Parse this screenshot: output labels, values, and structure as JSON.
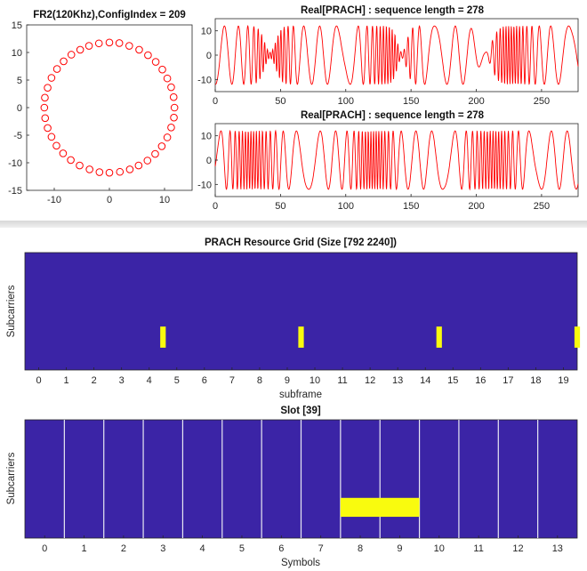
{
  "chart_data": [
    {
      "type": "scatter",
      "title": "FR2(120Khz),ConfigIndex = 209",
      "xlim": [
        -15,
        15
      ],
      "ylim": [
        -15,
        15
      ],
      "xticks": [
        "-10",
        "0",
        "10"
      ],
      "yticks": [
        "15",
        "10",
        "5",
        "0",
        "-5",
        "-10",
        "-15"
      ],
      "marker": "open circle",
      "color": "#ff0000",
      "shape": "ring of points, radius about 11.8 centred at origin",
      "points": [
        [
          11.8,
          0
        ],
        [
          11.65,
          1.9
        ],
        [
          11.2,
          3.7
        ],
        [
          10.5,
          5.3
        ],
        [
          9.6,
          6.9
        ],
        [
          8.4,
          8.3
        ],
        [
          7.0,
          9.5
        ],
        [
          5.4,
          10.5
        ],
        [
          3.6,
          11.2
        ],
        [
          1.8,
          11.7
        ],
        [
          0,
          11.8
        ],
        [
          -1.9,
          11.65
        ],
        [
          -3.7,
          11.2
        ],
        [
          -5.3,
          10.5
        ],
        [
          -6.9,
          9.6
        ],
        [
          -8.3,
          8.4
        ],
        [
          -9.5,
          7.0
        ],
        [
          -10.5,
          5.4
        ],
        [
          -11.2,
          3.6
        ],
        [
          -11.7,
          1.8
        ],
        [
          -11.8,
          0
        ],
        [
          -11.65,
          -1.9
        ],
        [
          -11.2,
          -3.7
        ],
        [
          -10.5,
          -5.3
        ],
        [
          -9.6,
          -6.9
        ],
        [
          -8.4,
          -8.3
        ],
        [
          -7.0,
          -9.5
        ],
        [
          -5.4,
          -10.5
        ],
        [
          -3.6,
          -11.2
        ],
        [
          -1.8,
          -11.7
        ],
        [
          0,
          -11.8
        ],
        [
          1.9,
          -11.65
        ],
        [
          3.7,
          -11.2
        ],
        [
          5.3,
          -10.5
        ],
        [
          6.9,
          -9.6
        ],
        [
          8.3,
          -8.4
        ],
        [
          9.5,
          -7.0
        ],
        [
          10.5,
          -5.4
        ],
        [
          11.2,
          -3.6
        ],
        [
          11.7,
          -1.8
        ]
      ]
    },
    {
      "type": "line",
      "title": "Real[PRACH] : sequence length = 278",
      "xlim": [
        0,
        278
      ],
      "ylim": [
        -15,
        15
      ],
      "xticks": [
        "0",
        "50",
        "100",
        "150",
        "200",
        "250"
      ],
      "yticks": [
        "10",
        "0",
        "-10"
      ],
      "color": "#ff0000",
      "amplitude": 12,
      "description": "oscillating real part, dense bursts near x=60, 130-150, 230-245, fading near 55, 140, 205-215"
    },
    {
      "type": "line",
      "title": "Real[PRACH] : sequence length = 278",
      "xlim": [
        0,
        278
      ],
      "ylim": [
        -15,
        15
      ],
      "xticks": [
        "0",
        "50",
        "100",
        "150",
        "200",
        "250"
      ],
      "yticks": [
        "10",
        "0",
        "-10"
      ],
      "color": "#ff0000",
      "amplitude": 12,
      "description": "oscillating real part, dense bursts near x=45, 110, 130, 200, 220, 250"
    },
    {
      "type": "heatmap",
      "title": "PRACH Resource Grid (Size [792 2240])",
      "xlabel": "subframe",
      "ylabel": "Subcarriers",
      "categories": [
        "0",
        "1",
        "2",
        "3",
        "4",
        "5",
        "6",
        "7",
        "8",
        "9",
        "10",
        "11",
        "12",
        "13",
        "14",
        "15",
        "16",
        "17",
        "18",
        "19"
      ],
      "background": "#3b24a6",
      "highlight": "#f9fb0e",
      "highlight_blocks": [
        {
          "x_range": [
            4.4,
            4.6
          ],
          "y_range": [
            0.19,
            0.37
          ]
        },
        {
          "x_range": [
            9.4,
            9.6
          ],
          "y_range": [
            0.19,
            0.37
          ]
        },
        {
          "x_range": [
            14.4,
            14.6
          ],
          "y_range": [
            0.19,
            0.37
          ]
        },
        {
          "x_range": [
            19.4,
            19.6
          ],
          "y_range": [
            0.19,
            0.37
          ]
        }
      ]
    },
    {
      "type": "heatmap",
      "title": "Slot [39]",
      "xlabel": "Symbols",
      "ylabel": "Subcarriers",
      "categories": [
        "0",
        "1",
        "2",
        "3",
        "4",
        "5",
        "6",
        "7",
        "8",
        "9",
        "10",
        "11",
        "12",
        "13"
      ],
      "background": "#3b24a6",
      "highlight": "#f9fb0e",
      "symbol_dividers": true,
      "highlight_blocks": [
        {
          "x_range": [
            7.5,
            9.5
          ],
          "y_range": [
            0.18,
            0.34
          ]
        }
      ]
    }
  ]
}
